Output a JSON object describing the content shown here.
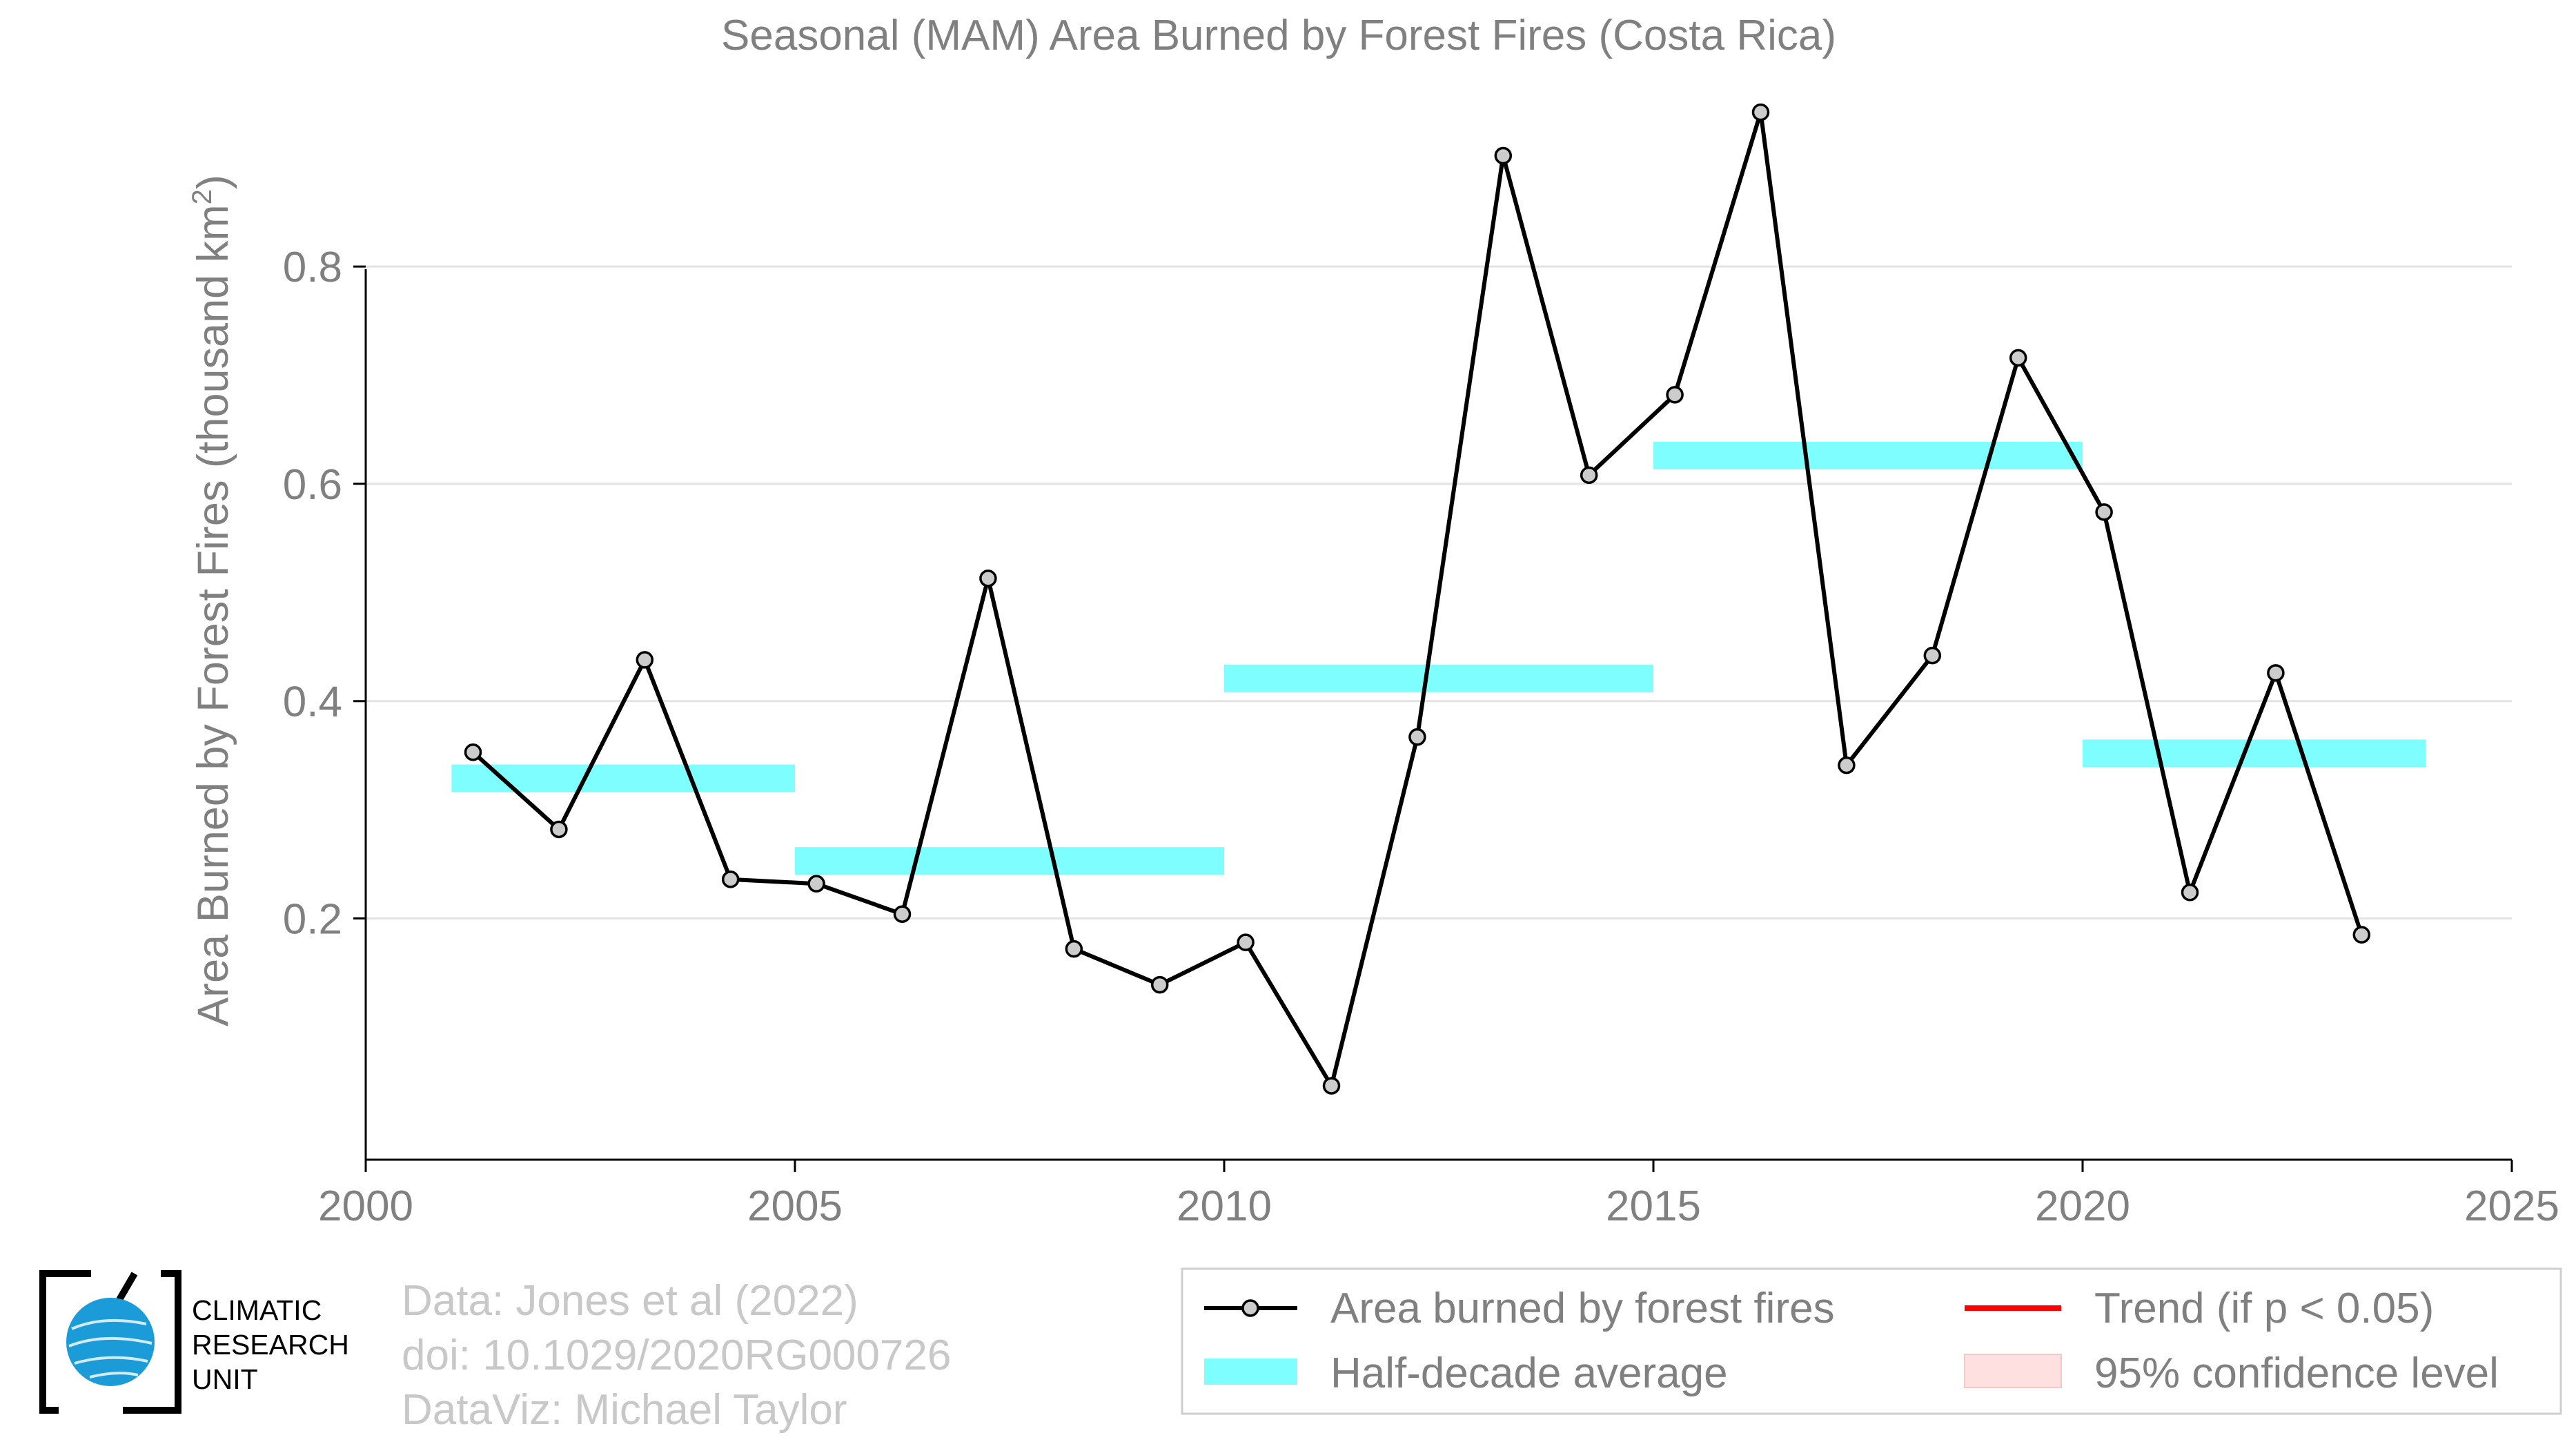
{
  "chart_data": {
    "type": "line",
    "title": "Seasonal (MAM) Area Burned by Forest Fires (Costa Rica)",
    "xlabel": "",
    "ylabel": "Area Burned by Forest Fires (thousand km",
    "ylabel_sup": "2",
    "ylabel_end": ")",
    "xlim": [
      2000,
      2025
    ],
    "ylim": [
      -0.022,
      0.95
    ],
    "xticks": [
      2000,
      2005,
      2010,
      2015,
      2020,
      2025
    ],
    "yticks": [
      0.2,
      0.4,
      0.6,
      0.8
    ],
    "ytick_labels": [
      "0.2",
      "0.4",
      "0.6",
      "0.8"
    ],
    "grid": "horizontal",
    "legend_position": "bottom-right",
    "series": [
      {
        "name": "Area burned by forest fires",
        "color": "#000000",
        "marker_fill": "#cccccc",
        "x": [
          2001.25,
          2002.25,
          2003.25,
          2004.25,
          2005.25,
          2006.25,
          2007.25,
          2008.25,
          2009.25,
          2010.25,
          2011.25,
          2012.25,
          2013.25,
          2014.25,
          2015.25,
          2016.25,
          2017.25,
          2018.25,
          2019.25,
          2020.25,
          2021.25,
          2022.25,
          2023.25
        ],
        "values": [
          0.353,
          0.282,
          0.438,
          0.236,
          0.232,
          0.204,
          0.513,
          0.172,
          0.139,
          0.178,
          0.046,
          0.367,
          0.902,
          0.608,
          0.682,
          0.942,
          0.341,
          0.442,
          0.716,
          0.574,
          0.224,
          0.426,
          0.185
        ]
      }
    ],
    "half_decade_average": {
      "name": "Half-decade average",
      "color": "#7ffeff",
      "segments": [
        {
          "x0": 2001,
          "x1": 2005,
          "value": 0.329
        },
        {
          "x0": 2005,
          "x1": 2010,
          "value": 0.253
        },
        {
          "x0": 2010,
          "x1": 2015,
          "value": 0.421
        },
        {
          "x0": 2015,
          "x1": 2020,
          "value": 0.626
        },
        {
          "x0": 2020,
          "x1": 2024,
          "value": 0.352
        }
      ]
    },
    "legend": [
      {
        "label": "Area burned by forest fires",
        "kind": "line-marker",
        "color": "#000000"
      },
      {
        "label": "Trend (if p < 0.05)",
        "kind": "line",
        "color": "#ff0000"
      },
      {
        "label": "Half-decade average",
        "kind": "band",
        "color": "#7ffeff"
      },
      {
        "label": "95% confidence level",
        "kind": "patch",
        "color": "#ffe0e0"
      }
    ]
  },
  "logo": {
    "line1": "CLIMATIC",
    "line2": "RESEARCH",
    "line3": "UNIT"
  },
  "credits": {
    "data": "Data: Jones et al (2022)",
    "doi": "doi: 10.1029/2020RG000726",
    "dataviz": "DataViz: Michael Taylor"
  },
  "colors": {
    "text": "#808080",
    "grid": "#e3e3e3",
    "axis": "#000000",
    "credit": "#c8c8c8",
    "logo_blue": "#1b9bd7"
  }
}
